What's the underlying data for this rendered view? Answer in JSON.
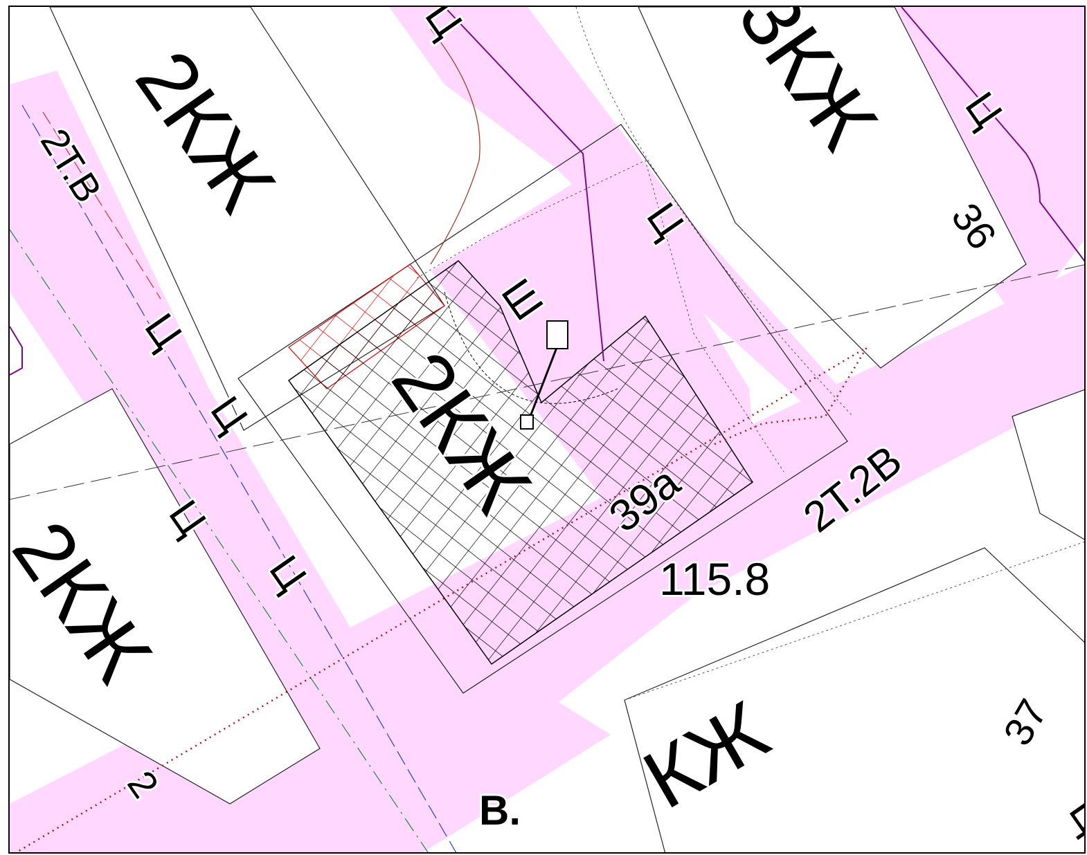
{
  "map": {
    "colors": {
      "road": "#ffd7ff",
      "building": "#ffffff",
      "outline": "#222222",
      "hatch": "#000000",
      "hatch_red": "#e00000",
      "purple_line": "#7a0a8a",
      "brown_line": "#a0301a",
      "red_dotted": "#b01010",
      "blue_dash": "#2040e0",
      "green_dash": "#1a8a3a",
      "red_dash": "#e03030"
    },
    "labels": {
      "building_top_left": "2КЖ",
      "building_top_right": "3КЖ",
      "building_center": "2КЖ",
      "building_left": "2КЖ",
      "building_bottom": "КЖ",
      "house_36": "36",
      "house_37": "37",
      "house_39a": "39а",
      "house_2": "2",
      "elevation": "115.8",
      "road_2t2b": "2Т.2В",
      "road_2tb": "2Т.В",
      "street_prefix": "В.",
      "ts_1": "Ц",
      "ts_2": "Ц",
      "ts_3": "Ц",
      "ts_4": "Ц",
      "ts_5": "Ц",
      "ts_6": "Ц",
      "ts_7": "Ц",
      "ts_8": "Ц",
      "shaft": "Ш"
    }
  }
}
